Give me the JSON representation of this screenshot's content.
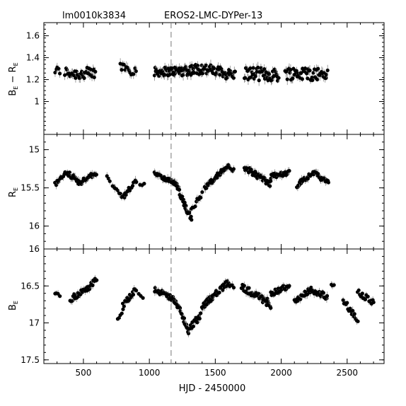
{
  "header": {
    "field_id": "lm0010k3834",
    "object_name": "EROS2-LMC-DYPer-13"
  },
  "colors": {
    "points": "#000000",
    "errorbars": "#888888",
    "frame": "#000000",
    "marker_line": "#777777"
  },
  "chart_data": [
    {
      "type": "scatter",
      "panel": "top",
      "ylabel": "B_E − R_E",
      "ylabel_parts": {
        "b": "B",
        "bsub": "E",
        "minus": "−",
        "r": "R",
        "rsub": "E"
      },
      "ylim": [
        0.7,
        1.72
      ],
      "y_inverted": false,
      "yticks": [
        1,
        1.2,
        1.4,
        1.6
      ],
      "ytick_labels": [
        "1",
        "1.2",
        "1.4",
        "1.6"
      ],
      "xlim": [
        200,
        2780
      ],
      "marker_x": 1165,
      "series": [
        {
          "name": "",
          "segments": [
            {
              "x0": 285,
              "x1": 320,
              "y0": 1.28,
              "y1": 1.28,
              "amp": 0.04,
              "n": 5
            },
            {
              "x0": 360,
              "x1": 470,
              "y0": 1.27,
              "y1": 1.25,
              "amp": 0.05,
              "n": 16
            },
            {
              "x0": 470,
              "x1": 590,
              "y0": 1.25,
              "y1": 1.25,
              "amp": 0.06,
              "n": 22
            },
            {
              "x0": 780,
              "x1": 900,
              "y0": 1.33,
              "y1": 1.28,
              "amp": 0.05,
              "n": 14
            },
            {
              "x0": 1040,
              "x1": 1230,
              "y0": 1.27,
              "y1": 1.28,
              "amp": 0.04,
              "n": 42
            },
            {
              "x0": 1230,
              "x1": 1400,
              "y0": 1.28,
              "y1": 1.3,
              "amp": 0.05,
              "n": 36
            },
            {
              "x0": 1400,
              "x1": 1650,
              "y0": 1.3,
              "y1": 1.24,
              "amp": 0.05,
              "n": 44
            },
            {
              "x0": 1720,
              "x1": 1980,
              "y0": 1.26,
              "y1": 1.24,
              "amp": 0.06,
              "n": 46
            },
            {
              "x0": 2030,
              "x1": 2350,
              "y0": 1.26,
              "y1": 1.25,
              "amp": 0.06,
              "n": 56
            }
          ]
        }
      ]
    },
    {
      "type": "scatter",
      "panel": "middle",
      "ylabel": "R_E",
      "ylabel_parts": {
        "main": "R",
        "sub": "E"
      },
      "ylim": [
        14.8,
        16.3
      ],
      "y_inverted": true,
      "yticks": [
        15,
        15.5,
        16
      ],
      "ytick_labels": [
        "15",
        "15.5",
        "16"
      ],
      "xlim": [
        200,
        2780
      ],
      "marker_x": 1165,
      "series": [
        {
          "name": "",
          "segments": [
            {
              "x0": 285,
              "x1": 370,
              "y0": 15.45,
              "y1": 15.3,
              "amp": 0.03,
              "n": 12
            },
            {
              "x0": 370,
              "x1": 460,
              "y0": 15.3,
              "y1": 15.4,
              "amp": 0.03,
              "n": 16
            },
            {
              "x0": 460,
              "x1": 600,
              "y0": 15.45,
              "y1": 15.3,
              "amp": 0.03,
              "n": 24
            },
            {
              "x0": 680,
              "x1": 700,
              "y0": 15.35,
              "y1": 15.4,
              "amp": 0.02,
              "n": 3
            },
            {
              "x0": 720,
              "x1": 810,
              "y0": 15.48,
              "y1": 15.63,
              "amp": 0.03,
              "n": 10
            },
            {
              "x0": 810,
              "x1": 900,
              "y0": 15.6,
              "y1": 15.4,
              "amp": 0.03,
              "n": 14
            },
            {
              "x0": 930,
              "x1": 960,
              "y0": 15.45,
              "y1": 15.45,
              "amp": 0.02,
              "n": 3
            },
            {
              "x0": 1040,
              "x1": 1200,
              "y0": 15.3,
              "y1": 15.45,
              "amp": 0.03,
              "n": 30
            },
            {
              "x0": 1200,
              "x1": 1320,
              "y0": 15.45,
              "y1": 15.93,
              "amp": 0.04,
              "n": 32
            },
            {
              "x0": 1320,
              "x1": 1400,
              "y0": 15.78,
              "y1": 15.58,
              "amp": 0.03,
              "n": 10
            },
            {
              "x0": 1420,
              "x1": 1600,
              "y0": 15.5,
              "y1": 15.2,
              "amp": 0.03,
              "n": 40
            },
            {
              "x0": 1600,
              "x1": 1640,
              "y0": 15.22,
              "y1": 15.27,
              "amp": 0.02,
              "n": 6
            },
            {
              "x0": 1720,
              "x1": 1920,
              "y0": 15.23,
              "y1": 15.45,
              "amp": 0.04,
              "n": 42
            },
            {
              "x0": 1920,
              "x1": 2060,
              "y0": 15.35,
              "y1": 15.3,
              "amp": 0.03,
              "n": 24
            },
            {
              "x0": 2120,
              "x1": 2240,
              "y0": 15.47,
              "y1": 15.3,
              "amp": 0.03,
              "n": 24
            },
            {
              "x0": 2240,
              "x1": 2360,
              "y0": 15.3,
              "y1": 15.43,
              "amp": 0.03,
              "n": 22
            }
          ]
        }
      ]
    },
    {
      "type": "scatter",
      "panel": "bottom",
      "ylabel": "B_E",
      "ylabel_parts": {
        "main": "B",
        "sub": "E"
      },
      "xlabel": "HJD - 2450000",
      "ylim": [
        16.0,
        17.55
      ],
      "y_inverted": true,
      "yticks": [
        16,
        16.5,
        17,
        17.5
      ],
      "ytick_labels": [
        "16",
        "16.5",
        "17",
        "17.5"
      ],
      "xlim": [
        200,
        2780
      ],
      "xticks": [
        500,
        1000,
        1500,
        2000,
        2500
      ],
      "xtick_labels": [
        "500",
        "1000",
        "1500",
        "2000",
        "2500"
      ],
      "marker_x": 1165,
      "series": [
        {
          "name": "",
          "segments": [
            {
              "x0": 285,
              "x1": 320,
              "y0": 16.6,
              "y1": 16.62,
              "amp": 0.02,
              "n": 4
            },
            {
              "x0": 400,
              "x1": 520,
              "y0": 16.68,
              "y1": 16.55,
              "amp": 0.04,
              "n": 18
            },
            {
              "x0": 520,
              "x1": 600,
              "y0": 16.55,
              "y1": 16.42,
              "amp": 0.04,
              "n": 14
            },
            {
              "x0": 760,
              "x1": 800,
              "y0": 16.97,
              "y1": 16.82,
              "amp": 0.03,
              "n": 5
            },
            {
              "x0": 800,
              "x1": 900,
              "y0": 16.75,
              "y1": 16.55,
              "amp": 0.04,
              "n": 16
            },
            {
              "x0": 920,
              "x1": 950,
              "y0": 16.6,
              "y1": 16.65,
              "amp": 0.03,
              "n": 3
            },
            {
              "x0": 1040,
              "x1": 1200,
              "y0": 16.55,
              "y1": 16.7,
              "amp": 0.04,
              "n": 30
            },
            {
              "x0": 1200,
              "x1": 1300,
              "y0": 16.7,
              "y1": 17.12,
              "amp": 0.04,
              "n": 26
            },
            {
              "x0": 1300,
              "x1": 1390,
              "y0": 17.08,
              "y1": 16.9,
              "amp": 0.04,
              "n": 14
            },
            {
              "x0": 1400,
              "x1": 1600,
              "y0": 16.78,
              "y1": 16.45,
              "amp": 0.04,
              "n": 44
            },
            {
              "x0": 1600,
              "x1": 1640,
              "y0": 16.48,
              "y1": 16.52,
              "amp": 0.02,
              "n": 5
            },
            {
              "x0": 1700,
              "x1": 1920,
              "y0": 16.5,
              "y1": 16.75,
              "amp": 0.05,
              "n": 44
            },
            {
              "x0": 1920,
              "x1": 2060,
              "y0": 16.6,
              "y1": 16.5,
              "amp": 0.04,
              "n": 26
            },
            {
              "x0": 2100,
              "x1": 2220,
              "y0": 16.7,
              "y1": 16.55,
              "amp": 0.04,
              "n": 22
            },
            {
              "x0": 2220,
              "x1": 2350,
              "y0": 16.55,
              "y1": 16.65,
              "amp": 0.04,
              "n": 22
            },
            {
              "x0": 2380,
              "x1": 2400,
              "y0": 16.5,
              "y1": 16.5,
              "amp": 0.02,
              "n": 3
            },
            {
              "x0": 2470,
              "x1": 2580,
              "y0": 16.7,
              "y1": 16.95,
              "amp": 0.04,
              "n": 16
            },
            {
              "x0": 2580,
              "x1": 2700,
              "y0": 16.58,
              "y1": 16.72,
              "amp": 0.04,
              "n": 18
            }
          ]
        }
      ]
    }
  ]
}
